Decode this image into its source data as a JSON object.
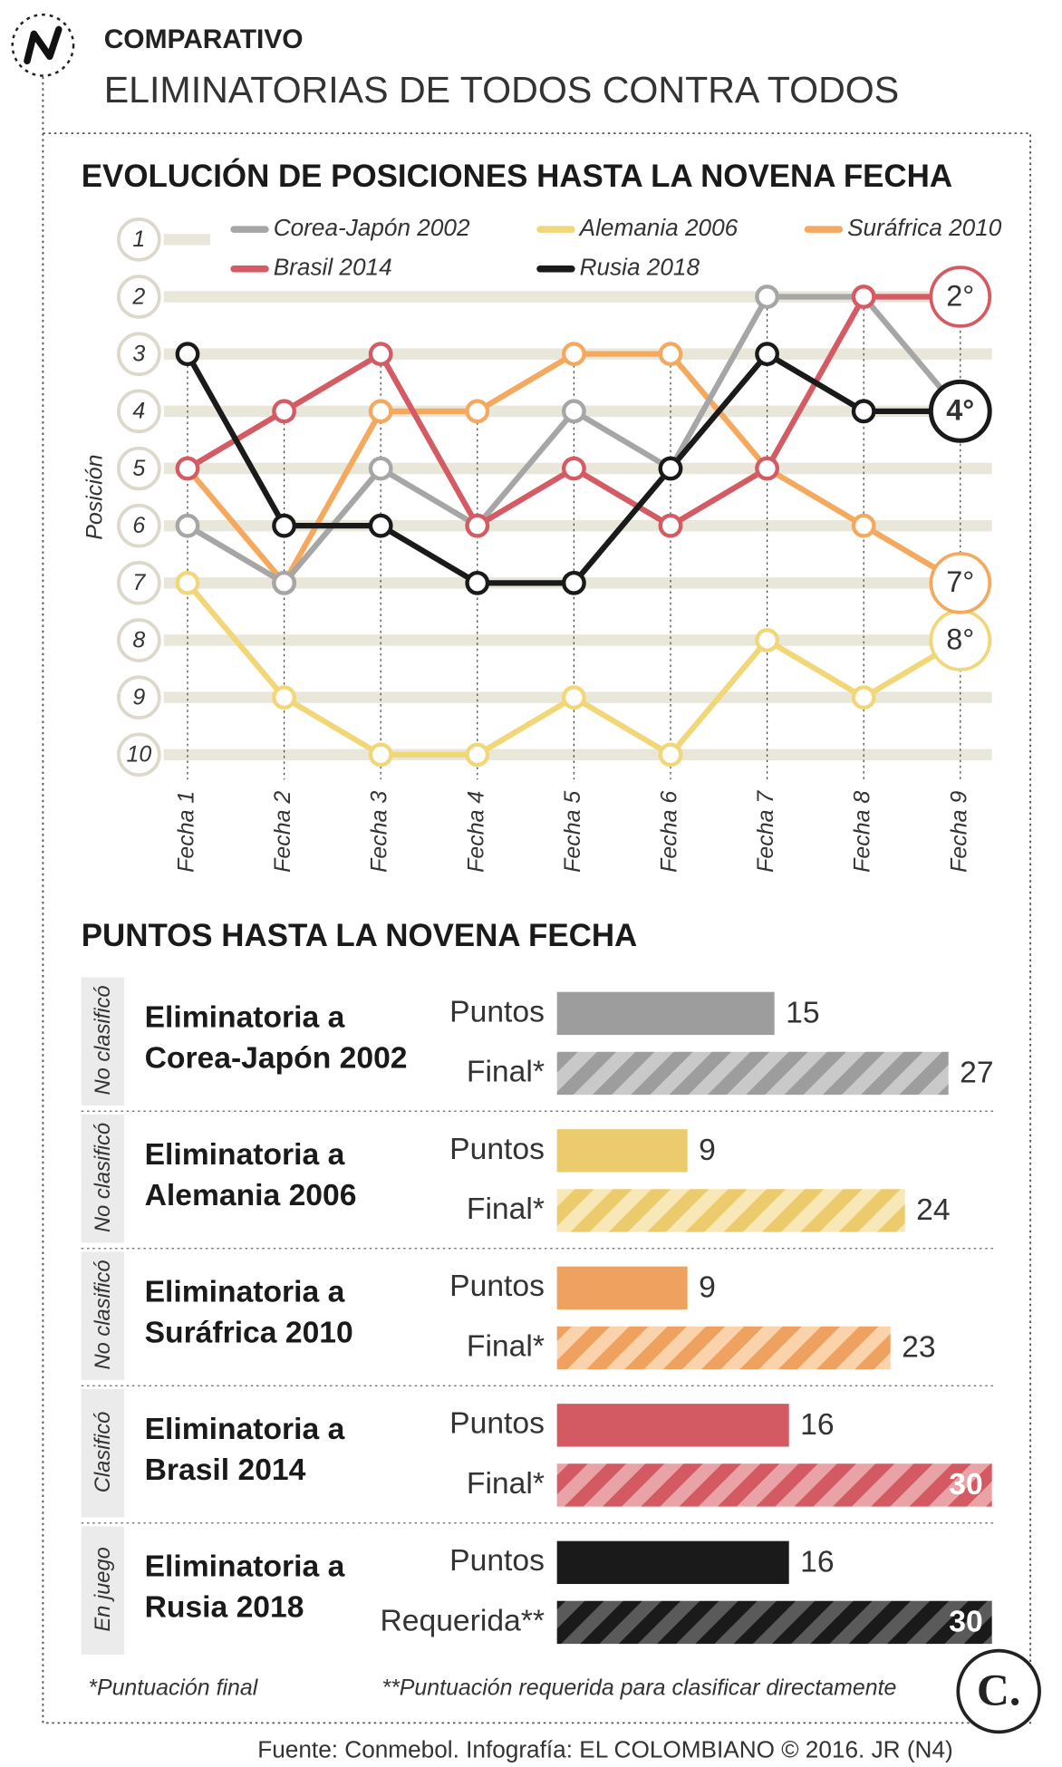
{
  "header": {
    "kicker": "COMPARATIVO",
    "title": "ELIMINATORIAS DE TODOS CONTRA TODOS"
  },
  "chart_data": [
    {
      "type": "line",
      "title": "EVOLUCIÓN DE POSICIONES HASTA LA NOVENA FECHA",
      "y_label": "Posición",
      "categories": [
        "Fecha 1",
        "Fecha 2",
        "Fecha 3",
        "Fecha 4",
        "Fecha 5",
        "Fecha 6",
        "Fecha 7",
        "Fecha 8",
        "Fecha 9"
      ],
      "ylim": [
        10,
        1
      ],
      "yticks": [
        1,
        2,
        3,
        4,
        5,
        6,
        7,
        8,
        9,
        10
      ],
      "grid": true,
      "series": [
        {
          "name": "Corea-Japón 2002",
          "color": "#a6a6a6",
          "values": [
            6,
            7,
            5,
            6,
            4,
            5,
            2,
            2,
            4
          ]
        },
        {
          "name": "Alemania 2006",
          "color": "#f2d779",
          "values": [
            7,
            9,
            10,
            10,
            9,
            10,
            8,
            9,
            8
          ],
          "value_labels": [
            null,
            null,
            null,
            null,
            null,
            null,
            null,
            null,
            "8°"
          ]
        },
        {
          "name": "Suráfrica 2010",
          "color": "#f5a95e",
          "values": [
            5,
            7,
            4,
            4,
            3,
            3,
            5,
            6,
            7
          ],
          "value_labels": [
            null,
            null,
            null,
            null,
            null,
            null,
            null,
            null,
            "7°"
          ]
        },
        {
          "name": "Brasil 2014",
          "color": "#d45b63",
          "values": [
            5,
            4,
            3,
            6,
            5,
            6,
            5,
            2,
            2
          ],
          "value_labels": [
            null,
            null,
            null,
            null,
            null,
            null,
            null,
            null,
            "2°"
          ]
        },
        {
          "name": "Rusia 2018",
          "color": "#1a1a1a",
          "values": [
            3,
            6,
            6,
            7,
            7,
            5,
            3,
            4,
            4
          ],
          "value_labels": [
            null,
            null,
            null,
            null,
            null,
            null,
            null,
            null,
            "4°"
          ]
        }
      ]
    },
    {
      "type": "bar",
      "title": "PUNTOS HASTA LA NOVENA FECHA",
      "xlim": [
        0,
        30
      ],
      "groups": [
        {
          "status": "No clasificó",
          "title": [
            "Eliminatoria a",
            "Corea-Japón 2002"
          ],
          "color": "#9d9d9d",
          "hatch_color": "#c9c9c9",
          "bars": [
            {
              "label": "Puntos",
              "value": 15
            },
            {
              "label": "Final*",
              "value": 27,
              "hatched": true
            }
          ]
        },
        {
          "status": "No clasificó",
          "title": [
            "Eliminatoria a",
            "Alemania 2006"
          ],
          "color": "#eccb6c",
          "hatch_color": "#f8e8b8",
          "bars": [
            {
              "label": "Puntos",
              "value": 9
            },
            {
              "label": "Final*",
              "value": 24,
              "hatched": true
            }
          ]
        },
        {
          "status": "No clasificó",
          "title": [
            "Eliminatoria a",
            "Suráfrica 2010"
          ],
          "color": "#efa160",
          "hatch_color": "#fad3ac",
          "bars": [
            {
              "label": "Puntos",
              "value": 9
            },
            {
              "label": "Final*",
              "value": 23,
              "hatched": true
            }
          ]
        },
        {
          "status": "Clasificó",
          "title": [
            "Eliminatoria a",
            "Brasil 2014"
          ],
          "color": "#d35a62",
          "hatch_color": "#e9a3a7",
          "bars": [
            {
              "label": "Puntos",
              "value": 16
            },
            {
              "label": "Final*",
              "value": 30,
              "hatched": true
            }
          ]
        },
        {
          "status": "En juego",
          "title": [
            "Eliminatoria a",
            "Rusia 2018"
          ],
          "color": "#1a1a1a",
          "hatch_color": "#5a5a5a",
          "bars": [
            {
              "label": "Puntos",
              "value": 16
            },
            {
              "label": "Requerida**",
              "value": 30,
              "hatched": true
            }
          ]
        }
      ]
    }
  ],
  "footnotes": [
    "*Puntuación final",
    "**Puntuación requerida para clasificar directamente"
  ],
  "source": "Fuente: Conmebol. Infografía: EL COLOMBIANO © 2016. JR (N4)",
  "logo": "C."
}
